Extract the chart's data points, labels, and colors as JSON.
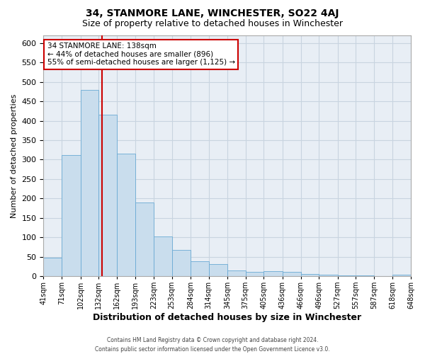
{
  "title": "34, STANMORE LANE, WINCHESTER, SO22 4AJ",
  "subtitle": "Size of property relative to detached houses in Winchester",
  "xlabel": "Distribution of detached houses by size in Winchester",
  "ylabel": "Number of detached properties",
  "footer_line1": "Contains HM Land Registry data © Crown copyright and database right 2024.",
  "footer_line2": "Contains public sector information licensed under the Open Government Licence v3.0.",
  "annotation_line1": "34 STANMORE LANE: 138sqm",
  "annotation_line2": "← 44% of detached houses are smaller (896)",
  "annotation_line3": "55% of semi-detached houses are larger (1,125) →",
  "property_size": 138,
  "bin_edges": [
    41,
    71,
    102,
    132,
    162,
    193,
    223,
    253,
    284,
    314,
    345,
    375,
    405,
    436,
    466,
    496,
    527,
    557,
    587,
    618,
    648
  ],
  "bar_heights": [
    47,
    311,
    480,
    415,
    315,
    190,
    103,
    67,
    38,
    31,
    14,
    11,
    13,
    11,
    6,
    4,
    1,
    1,
    0,
    4
  ],
  "bar_color": "#c9dded",
  "bar_edge_color": "#6aaad4",
  "grid_color": "#c8d4e0",
  "bg_color": "#e8eef5",
  "vline_color": "#cc0000",
  "vline_x": 138,
  "ylim": [
    0,
    620
  ],
  "yticks": [
    0,
    50,
    100,
    150,
    200,
    250,
    300,
    350,
    400,
    450,
    500,
    550,
    600
  ],
  "annotation_box_color": "#ffffff",
  "annotation_box_edge": "#cc0000",
  "title_fontsize": 10,
  "subtitle_fontsize": 9,
  "ylabel_fontsize": 8,
  "xlabel_fontsize": 9,
  "tick_fontsize": 8,
  "xtick_fontsize": 7
}
